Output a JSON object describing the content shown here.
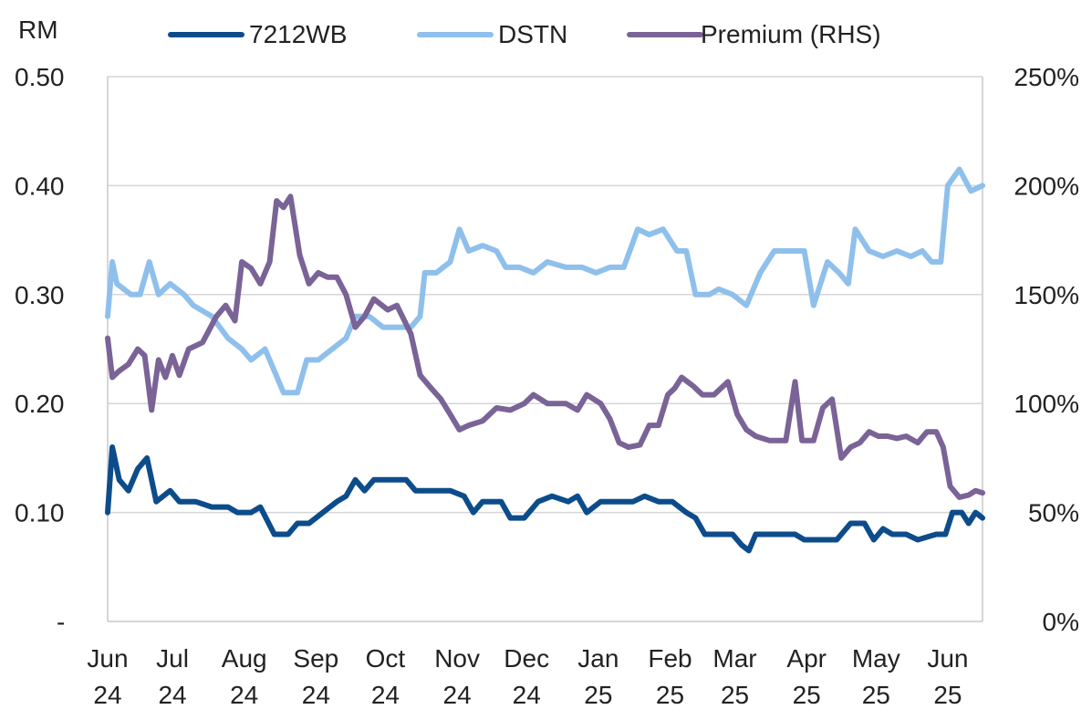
{
  "chart_data": {
    "type": "line",
    "y_left_unit": "RM",
    "y_left_ticks": [
      "-",
      "0.10",
      "0.20",
      "0.30",
      "0.40",
      "0.50"
    ],
    "y_left_values": [
      0,
      0.1,
      0.2,
      0.3,
      0.4,
      0.5
    ],
    "y_right_ticks": [
      "0%",
      "50%",
      "100%",
      "150%",
      "200%",
      "250%"
    ],
    "y_right_values": [
      0,
      50,
      100,
      150,
      200,
      250
    ],
    "ylim_left": [
      0,
      0.5
    ],
    "ylim_right": [
      0,
      250
    ],
    "x_start": "2024-06-17",
    "x_end": "2025-06-30",
    "x_tick_labels": [
      {
        "month": "Jun",
        "year": "24",
        "date": "2024-06-17"
      },
      {
        "month": "Jul",
        "year": "24",
        "date": "2024-07-15"
      },
      {
        "month": "Aug",
        "year": "24",
        "date": "2024-08-15"
      },
      {
        "month": "Sep",
        "year": "24",
        "date": "2024-09-15"
      },
      {
        "month": "Oct",
        "year": "24",
        "date": "2024-10-15"
      },
      {
        "month": "Nov",
        "year": "24",
        "date": "2024-11-15"
      },
      {
        "month": "Dec",
        "year": "24",
        "date": "2024-12-15"
      },
      {
        "month": "Jan",
        "year": "25",
        "date": "2025-01-15"
      },
      {
        "month": "Feb",
        "year": "25",
        "date": "2025-02-15"
      },
      {
        "month": "Mar",
        "year": "25",
        "date": "2025-03-15"
      },
      {
        "month": "Apr",
        "year": "25",
        "date": "2025-04-15"
      },
      {
        "month": "May",
        "year": "25",
        "date": "2025-05-15"
      },
      {
        "month": "Jun",
        "year": "25",
        "date": "2025-06-15"
      }
    ],
    "grid": "horizontal",
    "legend_position": "top",
    "series": [
      {
        "name": "7212WB",
        "axis": "left",
        "color": "#0d4c8b",
        "points": [
          [
            "2024-06-17",
            0.1
          ],
          [
            "2024-06-19",
            0.16
          ],
          [
            "2024-06-22",
            0.13
          ],
          [
            "2024-06-26",
            0.12
          ],
          [
            "2024-06-30",
            0.14
          ],
          [
            "2024-07-04",
            0.15
          ],
          [
            "2024-07-08",
            0.11
          ],
          [
            "2024-07-14",
            0.12
          ],
          [
            "2024-07-18",
            0.11
          ],
          [
            "2024-07-25",
            0.11
          ],
          [
            "2024-08-01",
            0.105
          ],
          [
            "2024-08-08",
            0.105
          ],
          [
            "2024-08-12",
            0.1
          ],
          [
            "2024-08-18",
            0.1
          ],
          [
            "2024-08-22",
            0.105
          ],
          [
            "2024-08-28",
            0.08
          ],
          [
            "2024-09-03",
            0.08
          ],
          [
            "2024-09-07",
            0.09
          ],
          [
            "2024-09-12",
            0.09
          ],
          [
            "2024-09-18",
            0.1
          ],
          [
            "2024-09-24",
            0.11
          ],
          [
            "2024-09-28",
            0.115
          ],
          [
            "2024-10-02",
            0.13
          ],
          [
            "2024-10-06",
            0.12
          ],
          [
            "2024-10-10",
            0.13
          ],
          [
            "2024-10-17",
            0.13
          ],
          [
            "2024-10-24",
            0.13
          ],
          [
            "2024-10-28",
            0.12
          ],
          [
            "2024-11-01",
            0.12
          ],
          [
            "2024-11-06",
            0.12
          ],
          [
            "2024-11-12",
            0.12
          ],
          [
            "2024-11-18",
            0.115
          ],
          [
            "2024-11-22",
            0.1
          ],
          [
            "2024-11-26",
            0.11
          ],
          [
            "2024-12-04",
            0.11
          ],
          [
            "2024-12-08",
            0.095
          ],
          [
            "2024-12-14",
            0.095
          ],
          [
            "2024-12-20",
            0.11
          ],
          [
            "2024-12-26",
            0.115
          ],
          [
            "2025-01-02",
            0.11
          ],
          [
            "2025-01-06",
            0.115
          ],
          [
            "2025-01-10",
            0.1
          ],
          [
            "2025-01-16",
            0.11
          ],
          [
            "2025-01-22",
            0.11
          ],
          [
            "2025-01-30",
            0.11
          ],
          [
            "2025-02-04",
            0.115
          ],
          [
            "2025-02-10",
            0.11
          ],
          [
            "2025-02-16",
            0.11
          ],
          [
            "2025-02-22",
            0.1
          ],
          [
            "2025-02-26",
            0.095
          ],
          [
            "2025-03-02",
            0.08
          ],
          [
            "2025-03-08",
            0.08
          ],
          [
            "2025-03-14",
            0.08
          ],
          [
            "2025-03-18",
            0.07
          ],
          [
            "2025-03-21",
            0.065
          ],
          [
            "2025-03-24",
            0.08
          ],
          [
            "2025-03-30",
            0.08
          ],
          [
            "2025-04-04",
            0.08
          ],
          [
            "2025-04-10",
            0.08
          ],
          [
            "2025-04-14",
            0.075
          ],
          [
            "2025-04-20",
            0.075
          ],
          [
            "2025-04-28",
            0.075
          ],
          [
            "2025-05-04",
            0.09
          ],
          [
            "2025-05-10",
            0.09
          ],
          [
            "2025-05-14",
            0.075
          ],
          [
            "2025-05-18",
            0.085
          ],
          [
            "2025-05-22",
            0.08
          ],
          [
            "2025-05-28",
            0.08
          ],
          [
            "2025-06-02",
            0.075
          ],
          [
            "2025-06-10",
            0.08
          ],
          [
            "2025-06-14",
            0.08
          ],
          [
            "2025-06-17",
            0.1
          ],
          [
            "2025-06-21",
            0.1
          ],
          [
            "2025-06-24",
            0.09
          ],
          [
            "2025-06-27",
            0.1
          ],
          [
            "2025-06-30",
            0.095
          ]
        ]
      },
      {
        "name": "DSTN",
        "axis": "left",
        "color": "#8fc0ec",
        "points": [
          [
            "2024-06-17",
            0.28
          ],
          [
            "2024-06-19",
            0.33
          ],
          [
            "2024-06-21",
            0.31
          ],
          [
            "2024-06-27",
            0.3
          ],
          [
            "2024-07-01",
            0.3
          ],
          [
            "2024-07-05",
            0.33
          ],
          [
            "2024-07-09",
            0.3
          ],
          [
            "2024-07-14",
            0.31
          ],
          [
            "2024-07-20",
            0.3
          ],
          [
            "2024-07-24",
            0.29
          ],
          [
            "2024-08-01",
            0.28
          ],
          [
            "2024-08-08",
            0.26
          ],
          [
            "2024-08-14",
            0.25
          ],
          [
            "2024-08-18",
            0.24
          ],
          [
            "2024-08-24",
            0.25
          ],
          [
            "2024-08-28",
            0.23
          ],
          [
            "2024-09-01",
            0.21
          ],
          [
            "2024-09-07",
            0.21
          ],
          [
            "2024-09-11",
            0.24
          ],
          [
            "2024-09-16",
            0.24
          ],
          [
            "2024-09-22",
            0.25
          ],
          [
            "2024-09-28",
            0.26
          ],
          [
            "2024-10-02",
            0.28
          ],
          [
            "2024-10-08",
            0.28
          ],
          [
            "2024-10-14",
            0.27
          ],
          [
            "2024-10-20",
            0.27
          ],
          [
            "2024-10-26",
            0.27
          ],
          [
            "2024-10-30",
            0.28
          ],
          [
            "2024-11-01",
            0.32
          ],
          [
            "2024-11-06",
            0.32
          ],
          [
            "2024-11-12",
            0.33
          ],
          [
            "2024-11-16",
            0.36
          ],
          [
            "2024-11-20",
            0.34
          ],
          [
            "2024-11-26",
            0.345
          ],
          [
            "2024-12-02",
            0.34
          ],
          [
            "2024-12-06",
            0.325
          ],
          [
            "2024-12-12",
            0.325
          ],
          [
            "2024-12-18",
            0.32
          ],
          [
            "2024-12-24",
            0.33
          ],
          [
            "2025-01-01",
            0.325
          ],
          [
            "2025-01-08",
            0.325
          ],
          [
            "2025-01-14",
            0.32
          ],
          [
            "2025-01-20",
            0.325
          ],
          [
            "2025-01-26",
            0.325
          ],
          [
            "2025-02-01",
            0.36
          ],
          [
            "2025-02-06",
            0.355
          ],
          [
            "2025-02-12",
            0.36
          ],
          [
            "2025-02-18",
            0.34
          ],
          [
            "2025-02-22",
            0.34
          ],
          [
            "2025-02-26",
            0.3
          ],
          [
            "2025-03-04",
            0.3
          ],
          [
            "2025-03-08",
            0.305
          ],
          [
            "2025-03-14",
            0.3
          ],
          [
            "2025-03-20",
            0.29
          ],
          [
            "2025-03-26",
            0.32
          ],
          [
            "2025-04-01",
            0.34
          ],
          [
            "2025-04-08",
            0.34
          ],
          [
            "2025-04-14",
            0.34
          ],
          [
            "2025-04-18",
            0.29
          ],
          [
            "2025-04-24",
            0.33
          ],
          [
            "2025-04-29",
            0.32
          ],
          [
            "2025-05-03",
            0.31
          ],
          [
            "2025-05-06",
            0.36
          ],
          [
            "2025-05-12",
            0.34
          ],
          [
            "2025-05-18",
            0.335
          ],
          [
            "2025-05-24",
            0.34
          ],
          [
            "2025-05-30",
            0.335
          ],
          [
            "2025-06-04",
            0.34
          ],
          [
            "2025-06-08",
            0.33
          ],
          [
            "2025-06-12",
            0.33
          ],
          [
            "2025-06-15",
            0.4
          ],
          [
            "2025-06-20",
            0.415
          ],
          [
            "2025-06-25",
            0.395
          ],
          [
            "2025-06-30",
            0.4
          ]
        ]
      },
      {
        "name": "Premium (RHS)",
        "axis": "right",
        "color": "#7a6396",
        "points": [
          [
            "2024-06-17",
            130
          ],
          [
            "2024-06-19",
            112
          ],
          [
            "2024-06-22",
            115
          ],
          [
            "2024-06-26",
            118
          ],
          [
            "2024-06-30",
            125
          ],
          [
            "2024-07-03",
            122
          ],
          [
            "2024-07-06",
            97
          ],
          [
            "2024-07-09",
            120
          ],
          [
            "2024-07-12",
            112
          ],
          [
            "2024-07-15",
            122
          ],
          [
            "2024-07-18",
            113
          ],
          [
            "2024-07-22",
            125
          ],
          [
            "2024-07-28",
            128
          ],
          [
            "2024-08-03",
            140
          ],
          [
            "2024-08-07",
            145
          ],
          [
            "2024-08-11",
            138
          ],
          [
            "2024-08-14",
            165
          ],
          [
            "2024-08-18",
            162
          ],
          [
            "2024-08-22",
            155
          ],
          [
            "2024-08-26",
            165
          ],
          [
            "2024-08-29",
            193
          ],
          [
            "2024-09-01",
            190
          ],
          [
            "2024-09-04",
            195
          ],
          [
            "2024-09-08",
            168
          ],
          [
            "2024-09-12",
            155
          ],
          [
            "2024-09-16",
            160
          ],
          [
            "2024-09-20",
            158
          ],
          [
            "2024-09-24",
            158
          ],
          [
            "2024-09-28",
            150
          ],
          [
            "2024-10-02",
            135
          ],
          [
            "2024-10-06",
            140
          ],
          [
            "2024-10-10",
            148
          ],
          [
            "2024-10-16",
            143
          ],
          [
            "2024-10-20",
            145
          ],
          [
            "2024-10-26",
            132
          ],
          [
            "2024-10-30",
            113
          ],
          [
            "2024-11-03",
            108
          ],
          [
            "2024-11-08",
            102
          ],
          [
            "2024-11-12",
            95
          ],
          [
            "2024-11-16",
            88
          ],
          [
            "2024-11-20",
            90
          ],
          [
            "2024-11-26",
            92
          ],
          [
            "2024-12-02",
            98
          ],
          [
            "2024-12-08",
            97
          ],
          [
            "2024-12-14",
            100
          ],
          [
            "2024-12-18",
            104
          ],
          [
            "2024-12-24",
            100
          ],
          [
            "2025-01-01",
            100
          ],
          [
            "2025-01-06",
            97
          ],
          [
            "2025-01-10",
            104
          ],
          [
            "2025-01-16",
            100
          ],
          [
            "2025-01-20",
            93
          ],
          [
            "2025-01-24",
            82
          ],
          [
            "2025-01-28",
            80
          ],
          [
            "2025-02-02",
            81
          ],
          [
            "2025-02-06",
            90
          ],
          [
            "2025-02-10",
            90
          ],
          [
            "2025-02-14",
            104
          ],
          [
            "2025-02-17",
            107
          ],
          [
            "2025-02-20",
            112
          ],
          [
            "2025-02-25",
            108
          ],
          [
            "2025-03-01",
            104
          ],
          [
            "2025-03-06",
            104
          ],
          [
            "2025-03-12",
            110
          ],
          [
            "2025-03-16",
            95
          ],
          [
            "2025-03-20",
            88
          ],
          [
            "2025-03-24",
            85
          ],
          [
            "2025-03-30",
            83
          ],
          [
            "2025-04-03",
            83
          ],
          [
            "2025-04-06",
            83
          ],
          [
            "2025-04-10",
            110
          ],
          [
            "2025-04-13",
            83
          ],
          [
            "2025-04-18",
            83
          ],
          [
            "2025-04-22",
            98
          ],
          [
            "2025-04-26",
            102
          ],
          [
            "2025-04-30",
            75
          ],
          [
            "2025-05-04",
            80
          ],
          [
            "2025-05-08",
            82
          ],
          [
            "2025-05-12",
            87
          ],
          [
            "2025-05-16",
            85
          ],
          [
            "2025-05-20",
            85
          ],
          [
            "2025-05-24",
            84
          ],
          [
            "2025-05-28",
            85
          ],
          [
            "2025-06-02",
            82
          ],
          [
            "2025-06-06",
            87
          ],
          [
            "2025-06-10",
            87
          ],
          [
            "2025-06-13",
            80
          ],
          [
            "2025-06-16",
            62
          ],
          [
            "2025-06-20",
            57
          ],
          [
            "2025-06-24",
            58
          ],
          [
            "2025-06-27",
            60
          ],
          [
            "2025-06-30",
            59
          ]
        ]
      }
    ]
  }
}
